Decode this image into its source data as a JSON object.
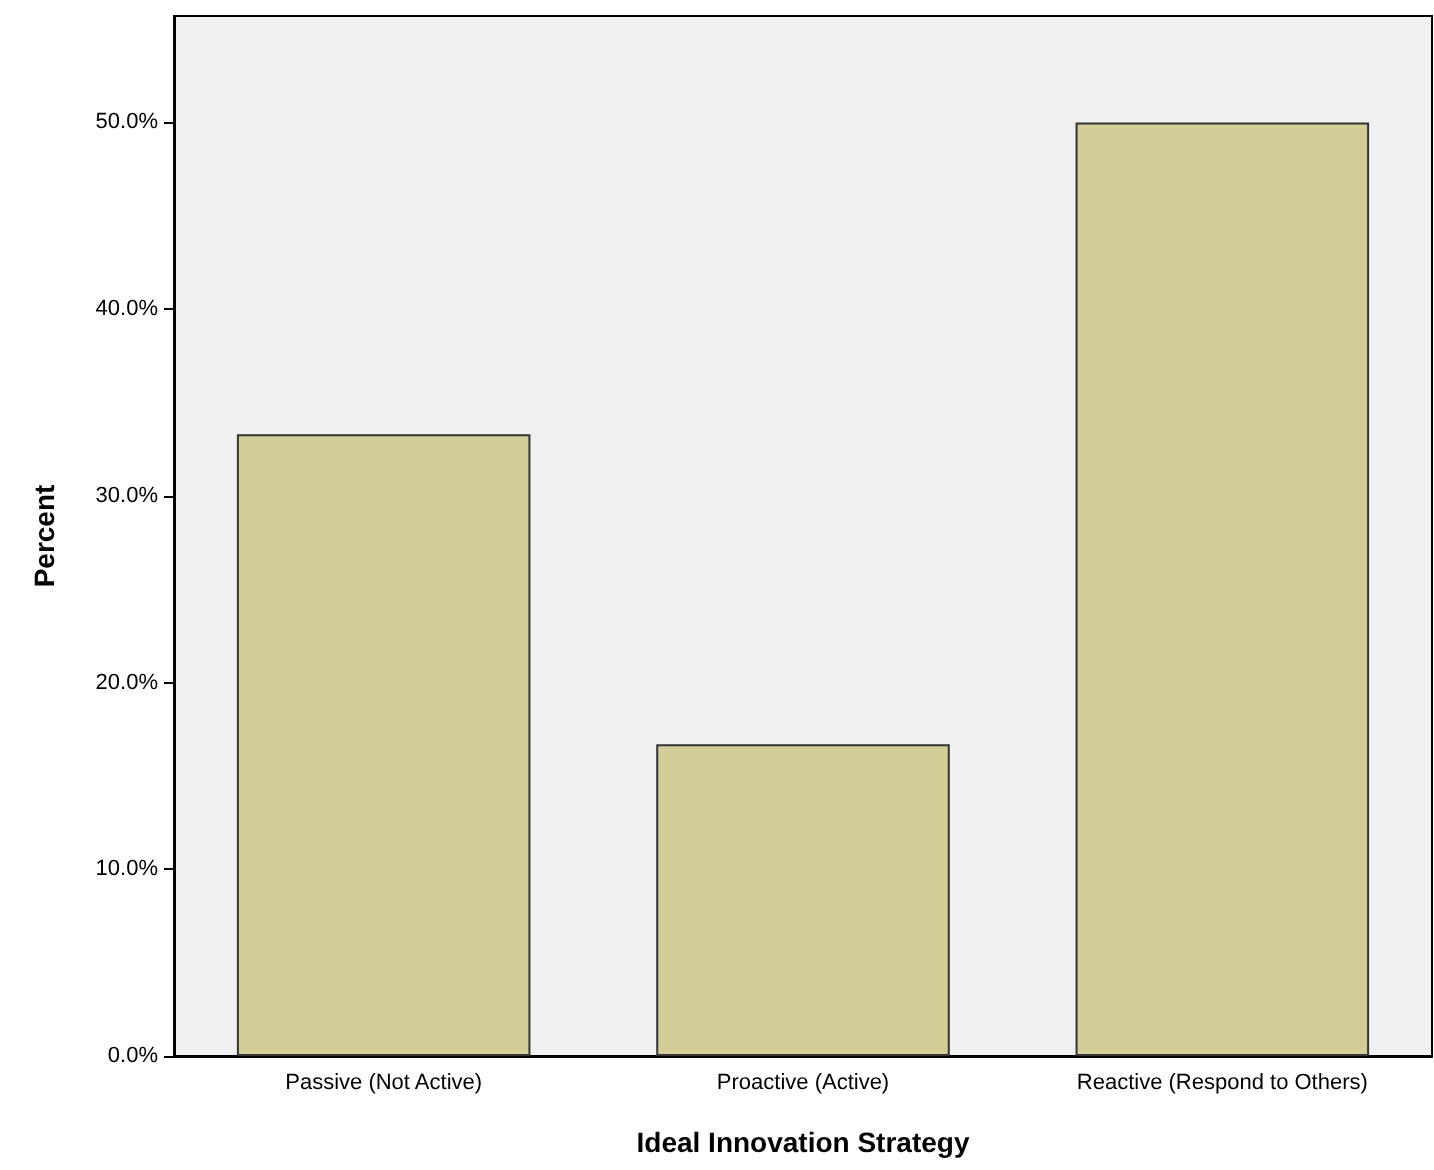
{
  "chart_data": {
    "type": "bar",
    "xlabel": "Ideal Innovation Strategy",
    "ylabel": "Percent",
    "categories": [
      "Passive (Not Active)",
      "Proactive (Active)",
      "Reactive (Respond to Others)"
    ],
    "values": [
      33.3,
      16.7,
      50.0
    ],
    "color": "#d3ce97",
    "ylim": [
      0,
      55.7
    ],
    "yticks": [
      {
        "value": 0,
        "label": "0.0%"
      },
      {
        "value": 10,
        "label": "10.0%"
      },
      {
        "value": 20,
        "label": "20.0%"
      },
      {
        "value": 30,
        "label": "30.0%"
      },
      {
        "value": 40,
        "label": "40.0%"
      },
      {
        "value": 50,
        "label": "50.0%"
      }
    ],
    "grid": false
  }
}
